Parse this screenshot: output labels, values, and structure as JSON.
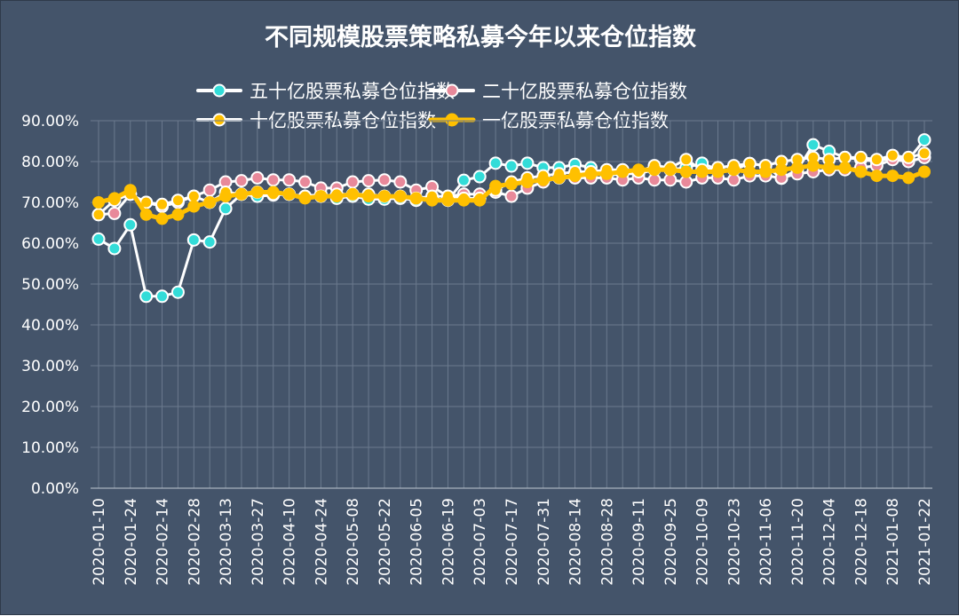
{
  "chart_data": {
    "type": "line",
    "title": "不同规模股票策略私募今年以来仓位指数",
    "legend_position": "top",
    "grid": true,
    "ylim": [
      0,
      90
    ],
    "y_ticks": [
      "0.00%",
      "10.00%",
      "20.00%",
      "30.00%",
      "40.00%",
      "50.00%",
      "60.00%",
      "70.00%",
      "80.00%",
      "90.00%"
    ],
    "x_tick_labels": [
      "2020-01-10",
      "2020-01-24",
      "2020-02-14",
      "2020-02-28",
      "2020-03-13",
      "2020-03-27",
      "2020-04-10",
      "2020-04-24",
      "2020-05-08",
      "2020-05-22",
      "2020-06-05",
      "2020-06-19",
      "2020-07-03",
      "2020-07-17",
      "2020-07-31",
      "2020-08-14",
      "2020-08-28",
      "2020-09-11",
      "2020-09-25",
      "2020-10-09",
      "2020-10-23",
      "2020-11-06",
      "2020-11-20",
      "2020-12-04",
      "2020-12-18",
      "2021-01-08",
      "2021-01-22"
    ],
    "background_color": "#44546a",
    "series": [
      {
        "name": "五十亿股票私募仓位指数",
        "line_color": "#ffffff",
        "marker_color": "#33dcd8",
        "style": "thin",
        "values": [
          61,
          58.7,
          64.5,
          47,
          47,
          48,
          60.8,
          60.3,
          68.5,
          72,
          71.5,
          71.8,
          72,
          71.5,
          72,
          71,
          71.5,
          70.8,
          70.8,
          71,
          70.5,
          71,
          70.5,
          75.4,
          76.3,
          79.6,
          78.9,
          79.6,
          78.5,
          78.5,
          79.3,
          78.5,
          76.5,
          77,
          77,
          78,
          78,
          78.5,
          79.6,
          78,
          78,
          79.5,
          79,
          75.9,
          78,
          84.1,
          82.5,
          81,
          80.5,
          80,
          81,
          80.5,
          85.3
        ]
      },
      {
        "name": "二十亿股票私募仓位指数",
        "line_color": "#ffffff",
        "marker_color": "#e8899a",
        "style": "thin",
        "values": [
          67,
          67.3,
          72,
          70,
          69,
          70,
          71.5,
          73,
          75,
          75.3,
          76,
          75.5,
          75.5,
          75,
          73.5,
          73.5,
          75,
          75.3,
          75.5,
          75,
          73,
          73.8,
          71.5,
          72,
          72,
          72.5,
          71.5,
          73.5,
          75,
          76,
          76,
          76,
          76,
          75.5,
          76,
          75.5,
          75.5,
          75,
          76,
          76,
          75.5,
          76.5,
          76.5,
          76,
          77,
          77.5,
          78,
          78,
          78.5,
          79,
          80.5,
          80,
          81
        ]
      },
      {
        "name": "十亿股票私募仓位指数",
        "line_color": "#ffffff",
        "marker_color": "#ffc000",
        "style": "thin",
        "values": [
          67,
          70.5,
          72,
          70,
          69.5,
          70.5,
          71.5,
          70,
          72.5,
          72,
          72.5,
          72,
          72,
          71.5,
          71.5,
          72,
          72,
          72,
          71.5,
          71.5,
          71,
          71.5,
          71.5,
          71,
          71,
          73,
          75,
          76,
          76.5,
          77,
          77.5,
          77.5,
          78,
          78,
          77.5,
          79,
          78.5,
          80.5,
          78,
          78.5,
          79,
          79.5,
          79,
          80,
          80.5,
          81,
          80.5,
          81,
          81,
          80.5,
          81.5,
          81,
          82
        ]
      },
      {
        "name": "一亿股票私募仓位指数",
        "line_color": "#ffc000",
        "marker_color": "#ffc000",
        "style": "thick",
        "values": [
          70,
          71,
          73,
          67,
          66,
          67,
          69,
          70,
          71.5,
          72,
          72.5,
          72.5,
          72,
          71,
          71.5,
          71.5,
          72,
          71.5,
          71.5,
          71.5,
          71,
          70.5,
          70.5,
          70.5,
          70.5,
          74,
          74.5,
          75,
          75.5,
          76,
          76.5,
          77,
          77,
          77.5,
          78,
          78,
          78,
          77.5,
          77.5,
          77.5,
          78,
          77.5,
          77.5,
          78,
          78.5,
          79,
          78.5,
          78.5,
          77.5,
          76.5,
          76.5,
          76,
          77.5
        ]
      }
    ]
  }
}
